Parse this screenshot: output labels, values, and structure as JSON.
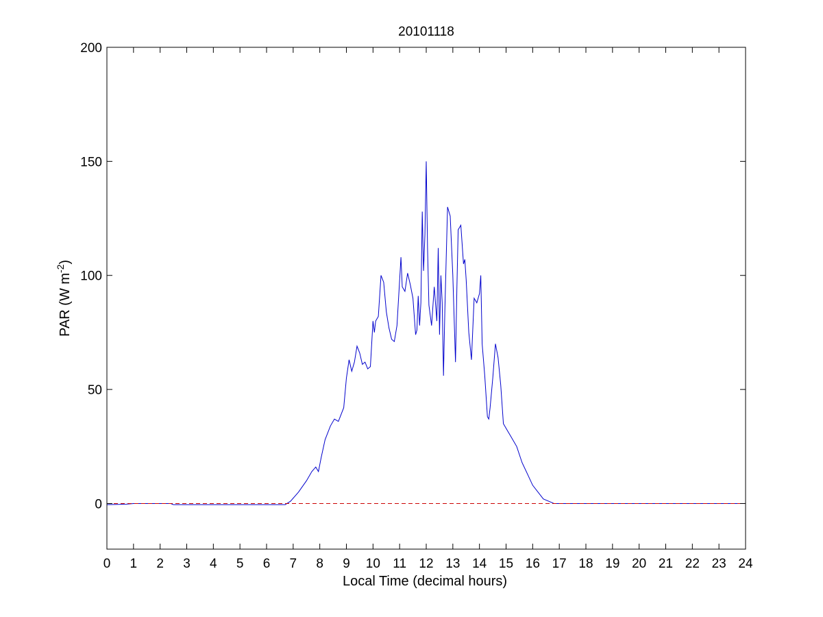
{
  "chart_data": {
    "type": "line",
    "title": "20101118",
    "xlabel": "Local Time (decimal hours)",
    "ylabel": {
      "prefix": "PAR (W m",
      "superscript": "-2",
      "suffix": ")"
    },
    "xlim": [
      0,
      24
    ],
    "ylim": [
      -20,
      200
    ],
    "xticks": [
      "0",
      "1",
      "2",
      "3",
      "4",
      "5",
      "6",
      "7",
      "8",
      "9",
      "10",
      "11",
      "12",
      "13",
      "14",
      "15",
      "16",
      "17",
      "18",
      "19",
      "20",
      "21",
      "22",
      "23",
      "24"
    ],
    "yticks": [
      "0",
      "50",
      "100",
      "150",
      "200"
    ],
    "grid": false,
    "legend": "none",
    "colors": {
      "series": "#0000cc",
      "reference": "#cc0000",
      "axes": "#000000"
    },
    "series": [
      {
        "style": "solid",
        "x": [
          0,
          0.7,
          1.0,
          2.4,
          2.5,
          6.7,
          6.9,
          7.2,
          7.5,
          7.7,
          7.85,
          7.95,
          8.05,
          8.2,
          8.4,
          8.55,
          8.7,
          8.9,
          9.0,
          9.1,
          9.2,
          9.3,
          9.4,
          9.5,
          9.6,
          9.7,
          9.8,
          9.9,
          10.0,
          10.05,
          10.1,
          10.2,
          10.3,
          10.4,
          10.5,
          10.6,
          10.7,
          10.8,
          10.9,
          11.0,
          11.05,
          11.1,
          11.2,
          11.3,
          11.4,
          11.5,
          11.6,
          11.65,
          11.7,
          11.75,
          11.8,
          11.85,
          11.9,
          11.95,
          12.0,
          12.05,
          12.1,
          12.2,
          12.3,
          12.4,
          12.45,
          12.5,
          12.55,
          12.6,
          12.65,
          12.7,
          12.8,
          12.9,
          13.0,
          13.1,
          13.15,
          13.2,
          13.3,
          13.4,
          13.45,
          13.5,
          13.6,
          13.7,
          13.8,
          13.9,
          14.0,
          14.05,
          14.1,
          14.2,
          14.3,
          14.35,
          14.4,
          14.5,
          14.6,
          14.7,
          14.8,
          14.9,
          15.0,
          15.2,
          15.4,
          15.6,
          15.8,
          16.0,
          16.2,
          16.4,
          16.6,
          16.8,
          17.0,
          17.3,
          24
        ],
        "y": [
          -0.5,
          -0.3,
          0,
          0,
          -0.5,
          -0.5,
          1,
          5,
          10,
          14,
          16,
          14,
          20,
          28,
          34,
          37,
          36,
          42,
          55,
          63,
          58,
          62,
          69,
          66,
          61,
          62,
          59,
          60,
          80,
          75,
          80,
          82,
          100,
          97,
          84,
          77,
          72,
          71,
          78,
          98,
          108,
          95,
          93,
          101,
          96,
          90,
          74,
          76,
          91,
          78,
          88,
          128,
          102,
          118,
          150,
          112,
          87,
          78,
          95,
          80,
          112,
          74,
          100,
          88,
          56,
          85,
          130,
          126,
          100,
          62,
          94,
          120,
          122,
          105,
          107,
          98,
          75,
          63,
          90,
          88,
          92,
          100,
          70,
          56,
          38,
          37,
          42,
          55,
          70,
          64,
          52,
          35,
          33,
          29,
          25,
          18,
          13,
          8,
          5,
          2,
          1,
          0,
          0,
          0,
          0
        ]
      },
      {
        "style": "dashed",
        "x": [
          0,
          24
        ],
        "y": [
          0,
          0
        ]
      }
    ]
  }
}
